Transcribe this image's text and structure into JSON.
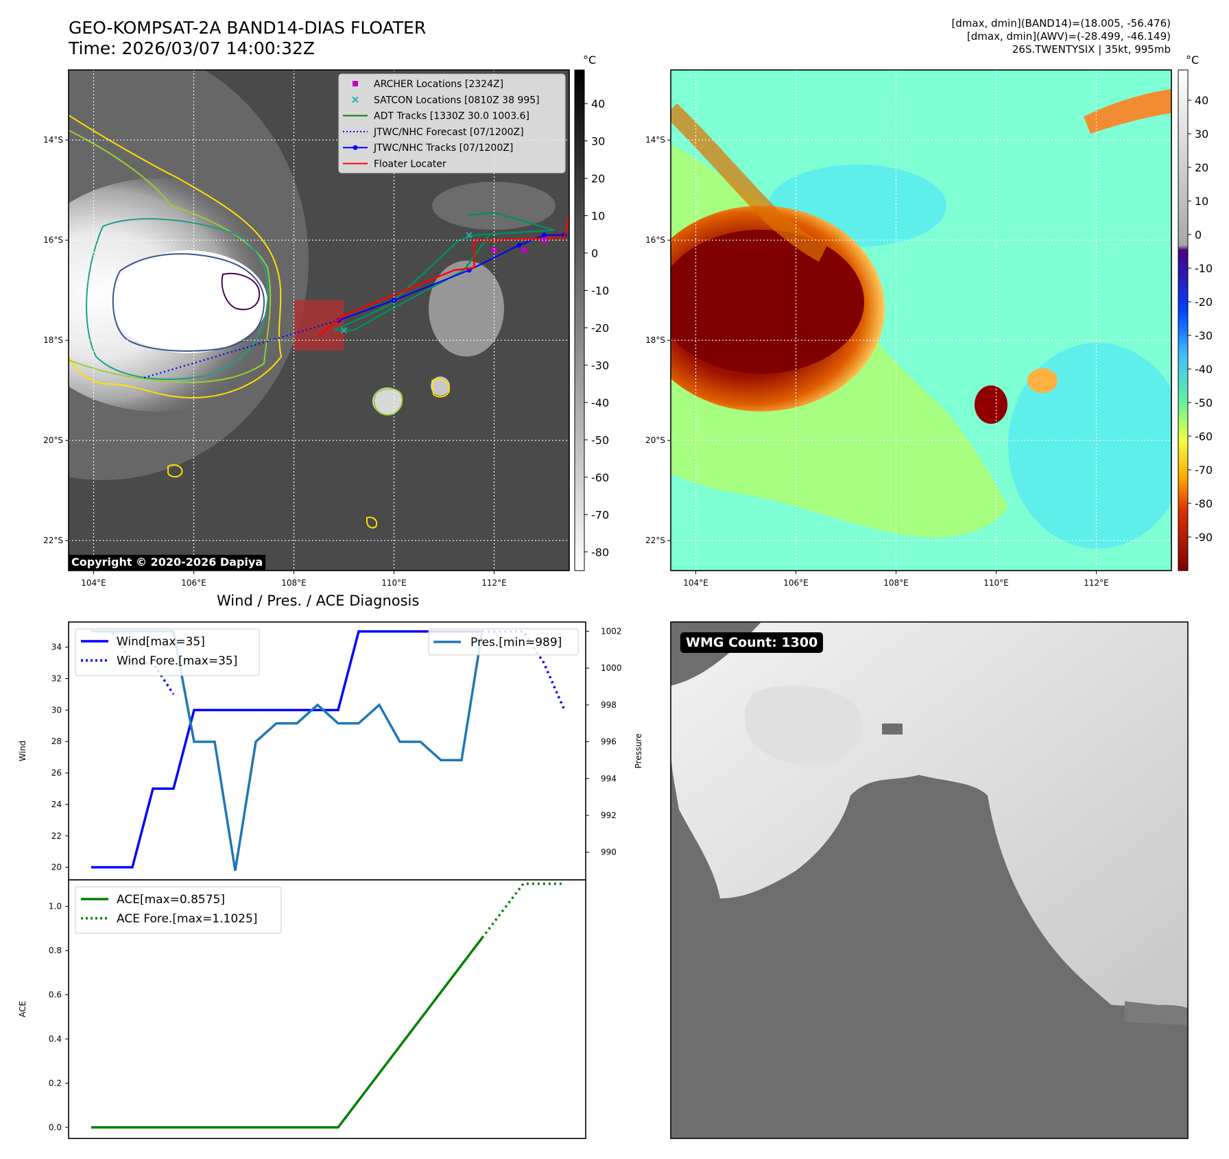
{
  "header": {
    "title_line1": "GEO-KOMPSAT-2A BAND14-DIAS FLOATER",
    "title_line2": "Time: 2026/03/07 14:00:32Z",
    "info_line1": "[dmax, dmin](BAND14)=(18.005, -56.476)",
    "info_line2": "[dmax, dmin](AWV)=(-28.499, -46.149)",
    "info_line3": "26S.TWENTYSIX | 35kt, 995mb"
  },
  "copyright": "Copyright © 2020-2026 Dapiya",
  "wmg_count": "WMG Count: 1300",
  "colors": {
    "ir_background": "#4a4a4a",
    "wv_background": "#7fffd4",
    "wmg_background": "#6e6e6e",
    "archer": "#c000c0",
    "satcon": "#20b2aa",
    "adt": "#008000",
    "jtwc": "#0000ff",
    "floater": "#ff0000",
    "wind": "#0000ff",
    "pressure": "#1f77b4",
    "ace": "#008000"
  },
  "icons": {
    "archer": "square-marker",
    "satcon": "x-marker",
    "jtwc_track": "dot-line-marker"
  },
  "chart_data": [
    {
      "type": "map",
      "name": "ir-band14",
      "x_ticks": [
        "104°E",
        "106°E",
        "108°E",
        "110°E",
        "112°E"
      ],
      "x_tick_values": [
        104,
        106,
        108,
        110,
        112
      ],
      "y_ticks": [
        "14°S",
        "16°S",
        "18°S",
        "20°S",
        "22°S"
      ],
      "y_tick_values": [
        -14,
        -16,
        -18,
        -20,
        -22
      ],
      "xlim": [
        103.5,
        113.5
      ],
      "ylim": [
        -22.6,
        -12.6
      ],
      "grid": true,
      "legend_position": "top-right",
      "legend": [
        {
          "label": "ARCHER Locations [2324Z]",
          "marker": "square-marker",
          "color": "#c000c0"
        },
        {
          "label": "SATCON Locations [0810Z 38 995]",
          "marker": "x-marker",
          "color": "#20b2aa"
        },
        {
          "label": "ADT Tracks [1330Z 30.0 1003.6]",
          "marker": "line",
          "color": "#008000"
        },
        {
          "label": "JTWC/NHC Forecast [07/1200Z]",
          "marker": "dotted-line",
          "color": "#0000ff"
        },
        {
          "label": "JTWC/NHC Tracks [07/1200Z]",
          "marker": "dot-line-marker",
          "color": "#0000ff"
        },
        {
          "label": "Floater Locater",
          "marker": "line",
          "color": "#ff0000"
        }
      ],
      "colorbar_unit": "°C",
      "colorbar_ticks": [
        40,
        30,
        20,
        10,
        0,
        -10,
        -20,
        -30,
        -40,
        -50,
        -60,
        -70,
        -80
      ],
      "colorbar_range": [
        -85,
        49
      ],
      "jtwc_forecast": {
        "lon": [
          108.9,
          105.0
        ],
        "lat": [
          -17.6,
          -18.75
        ]
      },
      "jtwc_track": {
        "lon": [
          113.4,
          113.0,
          112.5,
          111.5,
          110.0,
          108.9
        ],
        "lat": [
          -15.9,
          -15.9,
          -16.1,
          -16.6,
          -17.2,
          -17.6
        ]
      },
      "adt_track": {
        "lon": [
          111.5,
          112.0,
          113.2,
          111.6,
          111.3,
          109.9,
          108.8,
          109.2,
          109.9,
          111.4,
          111.9
        ],
        "lat": [
          -15.5,
          -15.45,
          -15.8,
          -15.9,
          -16.0,
          -17.3,
          -17.8,
          -17.8,
          -17.4,
          -16.6,
          -15.9
        ]
      },
      "floater_track": {
        "lon": [
          113.5,
          113.4,
          112.0,
          111.6,
          111.6,
          111.2,
          109.0,
          108.5
        ],
        "lat": [
          -15.5,
          -15.95,
          -16.0,
          -16.0,
          -16.55,
          -16.6,
          -17.5,
          -17.9
        ]
      },
      "archer_locations": {
        "lon": [
          112.0,
          112.6,
          113.0
        ],
        "lat": [
          -16.2,
          -16.2,
          -16.0
        ]
      },
      "satcon_locations": {
        "lon": [
          109.0,
          111.5
        ],
        "lat": [
          -17.8,
          -15.9
        ]
      },
      "floater_box": {
        "lon": [
          108.0,
          109.0
        ],
        "lat": [
          -17.2,
          -18.2
        ]
      }
    },
    {
      "type": "map",
      "name": "awv-water-vapor",
      "x_ticks": [
        "104°E",
        "106°E",
        "108°E",
        "110°E",
        "112°E"
      ],
      "x_tick_values": [
        104,
        106,
        108,
        110,
        112
      ],
      "y_ticks": [
        "14°S",
        "16°S",
        "18°S",
        "20°S",
        "22°S"
      ],
      "y_tick_values": [
        -14,
        -16,
        -18,
        -20,
        -22
      ],
      "xlim": [
        103.5,
        113.5
      ],
      "ylim": [
        -22.6,
        -12.6
      ],
      "grid": true,
      "colorbar_unit": "°C",
      "colorbar_ticks": [
        40,
        30,
        20,
        10,
        0,
        -10,
        -20,
        -30,
        -40,
        -50,
        -60,
        -70,
        -80,
        -90
      ],
      "colorbar_range": [
        -100,
        49
      ]
    },
    {
      "type": "line",
      "title": "Wind / Pres. / ACE Diagnosis",
      "ylabel": "Wind",
      "ylabel_right": "Pressure",
      "ylim": [
        19.2,
        35.6
      ],
      "y_ticks": [
        20,
        22,
        24,
        26,
        28,
        30,
        32,
        34
      ],
      "y2lim": [
        988.5,
        1002.5
      ],
      "y2_ticks": [
        990,
        992,
        994,
        996,
        998,
        1000,
        1002
      ],
      "legend_position": "top-left",
      "legend_right_position": "top-right",
      "series": [
        {
          "name": "Wind[max=35]",
          "style": "solid",
          "x": [
            0,
            1,
            2,
            3,
            4,
            5,
            6,
            7,
            8,
            9,
            10,
            11,
            12,
            13,
            14,
            15,
            16,
            17,
            18,
            19
          ],
          "values": [
            20,
            20,
            20,
            25,
            25,
            30,
            30,
            30,
            30,
            30,
            30,
            30,
            30,
            35,
            35,
            35,
            35,
            35,
            35,
            35
          ]
        },
        {
          "name": "Wind Fore.[max=35]",
          "style": "dotted",
          "x": [
            0,
            1,
            2,
            3,
            4,
            19,
            20,
            21,
            22,
            23
          ],
          "values": [
            35,
            35,
            33,
            33,
            31,
            35,
            35,
            35,
            33,
            30
          ],
          "gap_after_index": 4
        },
        {
          "name": "Pres.[min=989]",
          "style": "solid",
          "axis": "right",
          "x": [
            0,
            1,
            2,
            3,
            4,
            5,
            6,
            7,
            8,
            9,
            10,
            11,
            12,
            13,
            14,
            15,
            16,
            17,
            18,
            19
          ],
          "values": [
            1002,
            1002,
            1002,
            1002,
            1002,
            996,
            996,
            989,
            996,
            997,
            997,
            998,
            997,
            997,
            998,
            996,
            996,
            995,
            995,
            1002
          ]
        }
      ]
    },
    {
      "type": "line",
      "ylabel": "ACE",
      "ylim": [
        -0.05,
        1.12
      ],
      "y_ticks": [
        0.0,
        0.2,
        0.4,
        0.6,
        0.8,
        1.0
      ],
      "legend_position": "top-left",
      "series": [
        {
          "name": "ACE[max=0.8575]",
          "style": "solid",
          "x": [
            0,
            12,
            19
          ],
          "values": [
            0,
            0,
            0.8575
          ]
        },
        {
          "name": "ACE Fore.[max=1.1025]",
          "style": "dotted",
          "x": [
            19,
            21,
            23
          ],
          "values": [
            0.8575,
            1.1025,
            1.1025
          ]
        }
      ]
    }
  ]
}
